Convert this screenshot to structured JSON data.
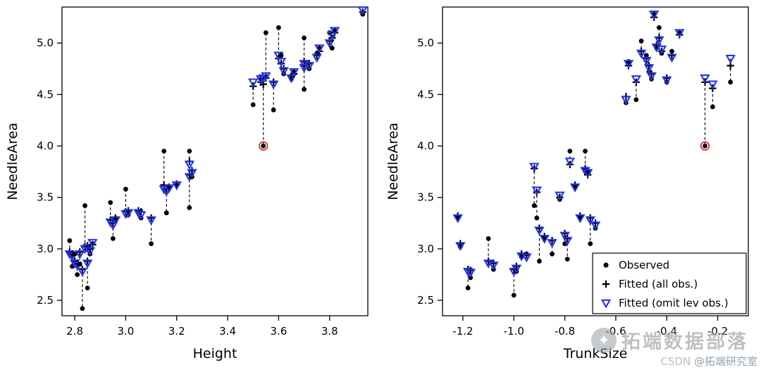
{
  "style": {
    "background": "#ffffff",
    "observed_color": "#000000",
    "fitted_color": "#000000",
    "fitted_omit_color": "#2233ee",
    "leverage_ring_color": "#e8262d",
    "connector_dash": "4,3",
    "axis_color": "#000000"
  },
  "icons": {
    "watermark_logo_glyph": "✦"
  },
  "watermark": {
    "brand": "拓端数据部落",
    "csdn_prefix": "CSDN",
    "csdn_handle": "@拓端研究室"
  },
  "chart_data": [
    {
      "type": "scatter",
      "title": "",
      "xlabel": "Height",
      "ylabel": "NeedleArea",
      "xlim": [
        2.75,
        3.95
      ],
      "ylim": [
        2.35,
        5.35
      ],
      "xticks": [
        2.8,
        3.0,
        3.2,
        3.4,
        3.6,
        3.8
      ],
      "yticks": [
        2.5,
        3.0,
        3.5,
        4.0,
        4.5,
        5.0
      ],
      "grid": false,
      "legend": null,
      "points": [
        {
          "x": 2.78,
          "observed": 3.08,
          "fitted": 2.97,
          "fitted_omit": 2.95
        },
        {
          "x": 2.79,
          "observed": 2.83,
          "fitted": 2.95,
          "fitted_omit": 2.93
        },
        {
          "x": 2.8,
          "observed": 2.95,
          "fitted": 2.88,
          "fitted_omit": 2.86
        },
        {
          "x": 2.81,
          "observed": 2.75,
          "fitted": 2.86,
          "fitted_omit": 2.84
        },
        {
          "x": 2.82,
          "observed": 2.85,
          "fitted": 2.97,
          "fitted_omit": 2.95
        },
        {
          "x": 2.83,
          "observed": 2.42,
          "fitted": 2.8,
          "fitted_omit": 2.78
        },
        {
          "x": 2.84,
          "observed": 3.42,
          "fitted": 3.02,
          "fitted_omit": 3.0
        },
        {
          "x": 2.85,
          "observed": 2.62,
          "fitted": 2.88,
          "fitted_omit": 2.86
        },
        {
          "x": 2.85,
          "observed": 3.0,
          "fitted": 3.03,
          "fitted_omit": 3.01
        },
        {
          "x": 2.86,
          "observed": 2.95,
          "fitted": 3.0,
          "fitted_omit": 2.98
        },
        {
          "x": 2.87,
          "observed": 3.05,
          "fitted": 3.04,
          "fitted_omit": 3.06
        },
        {
          "x": 2.94,
          "observed": 3.45,
          "fitted": 3.28,
          "fitted_omit": 3.26
        },
        {
          "x": 2.95,
          "observed": 3.1,
          "fitted": 3.25,
          "fitted_omit": 3.23
        },
        {
          "x": 2.96,
          "observed": 3.3,
          "fitted": 3.3,
          "fitted_omit": 3.28
        },
        {
          "x": 3.0,
          "observed": 3.58,
          "fitted": 3.36,
          "fitted_omit": 3.34
        },
        {
          "x": 3.01,
          "observed": 3.33,
          "fitted": 3.37,
          "fitted_omit": 3.35
        },
        {
          "x": 3.05,
          "observed": 3.35,
          "fitted": 3.37,
          "fitted_omit": 3.35
        },
        {
          "x": 3.06,
          "observed": 3.3,
          "fitted": 3.36,
          "fitted_omit": 3.33
        },
        {
          "x": 3.1,
          "observed": 3.05,
          "fitted": 3.3,
          "fitted_omit": 3.28
        },
        {
          "x": 3.15,
          "observed": 3.95,
          "fitted": 3.62,
          "fitted_omit": 3.58
        },
        {
          "x": 3.16,
          "observed": 3.35,
          "fitted": 3.58,
          "fitted_omit": 3.56
        },
        {
          "x": 3.17,
          "observed": 3.6,
          "fitted": 3.6,
          "fitted_omit": 3.59
        },
        {
          "x": 3.2,
          "observed": 3.62,
          "fitted": 3.63,
          "fitted_omit": 3.62
        },
        {
          "x": 3.25,
          "observed": 3.95,
          "fitted": 3.85,
          "fitted_omit": 3.82
        },
        {
          "x": 3.25,
          "observed": 3.4,
          "fitted": 3.72,
          "fitted_omit": 3.7
        },
        {
          "x": 3.26,
          "observed": 3.7,
          "fitted": 3.76,
          "fitted_omit": 3.74
        },
        {
          "x": 3.5,
          "observed": 4.4,
          "fitted": 4.58,
          "fitted_omit": 4.62
        },
        {
          "x": 3.53,
          "observed": 4.65,
          "fitted": 4.62,
          "fitted_omit": 4.65
        },
        {
          "x": 3.54,
          "observed": 4.0,
          "fitted": 4.6,
          "fitted_omit": 4.66,
          "leverage": true
        },
        {
          "x": 3.55,
          "observed": 5.1,
          "fitted": 4.66,
          "fitted_omit": 4.68
        },
        {
          "x": 3.58,
          "observed": 4.35,
          "fitted": 4.62,
          "fitted_omit": 4.6
        },
        {
          "x": 3.6,
          "observed": 5.15,
          "fitted": 4.85,
          "fitted_omit": 4.88
        },
        {
          "x": 3.61,
          "observed": 4.88,
          "fitted": 4.8,
          "fitted_omit": 4.82
        },
        {
          "x": 3.62,
          "observed": 4.7,
          "fitted": 4.75,
          "fitted_omit": 4.73
        },
        {
          "x": 3.65,
          "observed": 4.65,
          "fitted": 4.68,
          "fitted_omit": 4.66
        },
        {
          "x": 3.66,
          "observed": 4.72,
          "fitted": 4.7,
          "fitted_omit": 4.72
        },
        {
          "x": 3.7,
          "observed": 5.05,
          "fitted": 4.82,
          "fitted_omit": 4.8
        },
        {
          "x": 3.7,
          "observed": 4.55,
          "fitted": 4.78,
          "fitted_omit": 4.76
        },
        {
          "x": 3.72,
          "observed": 4.75,
          "fitted": 4.8,
          "fitted_omit": 4.78
        },
        {
          "x": 3.75,
          "observed": 4.9,
          "fitted": 4.88,
          "fitted_omit": 4.86
        },
        {
          "x": 3.76,
          "observed": 4.95,
          "fitted": 4.92,
          "fitted_omit": 4.95
        },
        {
          "x": 3.8,
          "observed": 5.1,
          "fitted": 5.02,
          "fitted_omit": 5.0
        },
        {
          "x": 3.81,
          "observed": 4.95,
          "fitted": 5.05,
          "fitted_omit": 5.08
        },
        {
          "x": 3.82,
          "observed": 5.12,
          "fitted": 5.1,
          "fitted_omit": 5.12
        },
        {
          "x": 3.93,
          "observed": 5.28,
          "fitted": 5.3,
          "fitted_omit": 5.32
        }
      ]
    },
    {
      "type": "scatter",
      "title": "",
      "xlabel": "TrunkSize",
      "ylabel": "NeedleArea",
      "xlim": [
        -1.28,
        -0.08
      ],
      "ylim": [
        2.35,
        5.35
      ],
      "xticks": [
        -1.2,
        -1.0,
        -0.8,
        -0.6,
        -0.4,
        -0.2
      ],
      "yticks": [
        2.5,
        3.0,
        3.5,
        4.0,
        4.5,
        5.0
      ],
      "grid": false,
      "legend": {
        "position": "bottom-right",
        "items": [
          {
            "label": "Observed",
            "marker": "dot"
          },
          {
            "label": "Fitted (all obs.)",
            "marker": "plus"
          },
          {
            "label": "Fitted (omit lev obs.)",
            "marker": "triangle"
          }
        ]
      },
      "points": [
        {
          "x": -1.22,
          "observed": 3.3,
          "fitted": 3.32,
          "fitted_omit": 3.3
        },
        {
          "x": -1.21,
          "observed": 3.02,
          "fitted": 3.05,
          "fitted_omit": 3.03
        },
        {
          "x": -1.18,
          "observed": 2.62,
          "fitted": 2.8,
          "fitted_omit": 2.78
        },
        {
          "x": -1.17,
          "observed": 2.72,
          "fitted": 2.79,
          "fitted_omit": 2.77
        },
        {
          "x": -1.1,
          "observed": 3.1,
          "fitted": 2.88,
          "fitted_omit": 2.86
        },
        {
          "x": -1.08,
          "observed": 2.8,
          "fitted": 2.86,
          "fitted_omit": 2.84
        },
        {
          "x": -1.0,
          "observed": 2.55,
          "fitted": 2.8,
          "fitted_omit": 2.78
        },
        {
          "x": -0.99,
          "observed": 2.78,
          "fitted": 2.83,
          "fitted_omit": 2.81
        },
        {
          "x": -0.97,
          "observed": 2.92,
          "fitted": 2.95,
          "fitted_omit": 2.93
        },
        {
          "x": -0.95,
          "observed": 2.95,
          "fitted": 2.94,
          "fitted_omit": 2.92
        },
        {
          "x": -0.92,
          "observed": 3.42,
          "fitted": 3.78,
          "fitted_omit": 3.8
        },
        {
          "x": -0.91,
          "observed": 3.3,
          "fitted": 3.55,
          "fitted_omit": 3.57
        },
        {
          "x": -0.9,
          "observed": 2.88,
          "fitted": 3.2,
          "fitted_omit": 3.18
        },
        {
          "x": -0.88,
          "observed": 3.1,
          "fitted": 3.12,
          "fitted_omit": 3.1
        },
        {
          "x": -0.85,
          "observed": 2.95,
          "fitted": 3.08,
          "fitted_omit": 3.06
        },
        {
          "x": -0.82,
          "observed": 3.48,
          "fitted": 3.5,
          "fitted_omit": 3.52
        },
        {
          "x": -0.8,
          "observed": 3.05,
          "fitted": 3.15,
          "fitted_omit": 3.13
        },
        {
          "x": -0.79,
          "observed": 2.9,
          "fitted": 3.1,
          "fitted_omit": 3.08
        },
        {
          "x": -0.78,
          "observed": 3.95,
          "fitted": 3.82,
          "fitted_omit": 3.85
        },
        {
          "x": -0.76,
          "observed": 3.6,
          "fitted": 3.62,
          "fitted_omit": 3.6
        },
        {
          "x": -0.74,
          "observed": 3.3,
          "fitted": 3.32,
          "fitted_omit": 3.3
        },
        {
          "x": -0.72,
          "observed": 3.95,
          "fitted": 3.78,
          "fitted_omit": 3.76
        },
        {
          "x": -0.71,
          "observed": 3.75,
          "fitted": 3.72,
          "fitted_omit": 3.74
        },
        {
          "x": -0.7,
          "observed": 3.05,
          "fitted": 3.3,
          "fitted_omit": 3.28
        },
        {
          "x": -0.68,
          "observed": 3.2,
          "fitted": 3.25,
          "fitted_omit": 3.23
        },
        {
          "x": -0.56,
          "observed": 4.42,
          "fitted": 4.48,
          "fitted_omit": 4.45
        },
        {
          "x": -0.55,
          "observed": 4.82,
          "fitted": 4.78,
          "fitted_omit": 4.8
        },
        {
          "x": -0.52,
          "observed": 4.45,
          "fitted": 4.62,
          "fitted_omit": 4.65
        },
        {
          "x": -0.5,
          "observed": 5.02,
          "fitted": 4.92,
          "fitted_omit": 4.9
        },
        {
          "x": -0.48,
          "observed": 4.88,
          "fitted": 4.85,
          "fitted_omit": 4.83
        },
        {
          "x": -0.47,
          "observed": 4.72,
          "fitted": 4.78,
          "fitted_omit": 4.76
        },
        {
          "x": -0.46,
          "observed": 4.65,
          "fitted": 4.7,
          "fitted_omit": 4.68
        },
        {
          "x": -0.45,
          "observed": 5.28,
          "fitted": 5.25,
          "fitted_omit": 5.28
        },
        {
          "x": -0.44,
          "observed": 4.95,
          "fitted": 4.98,
          "fitted_omit": 4.96
        },
        {
          "x": -0.43,
          "observed": 5.15,
          "fitted": 5.05,
          "fitted_omit": 5.03
        },
        {
          "x": -0.42,
          "observed": 4.9,
          "fitted": 4.92,
          "fitted_omit": 4.94
        },
        {
          "x": -0.4,
          "observed": 4.62,
          "fitted": 4.66,
          "fitted_omit": 4.64
        },
        {
          "x": -0.38,
          "observed": 4.92,
          "fitted": 4.88,
          "fitted_omit": 4.86
        },
        {
          "x": -0.35,
          "observed": 5.1,
          "fitted": 5.08,
          "fitted_omit": 5.1
        },
        {
          "x": -0.25,
          "observed": 4.0,
          "fitted": 4.62,
          "fitted_omit": 4.66,
          "leverage": true
        },
        {
          "x": -0.22,
          "observed": 4.38,
          "fitted": 4.56,
          "fitted_omit": 4.6
        },
        {
          "x": -0.15,
          "observed": 4.62,
          "fitted": 4.78,
          "fitted_omit": 4.85
        }
      ]
    }
  ]
}
